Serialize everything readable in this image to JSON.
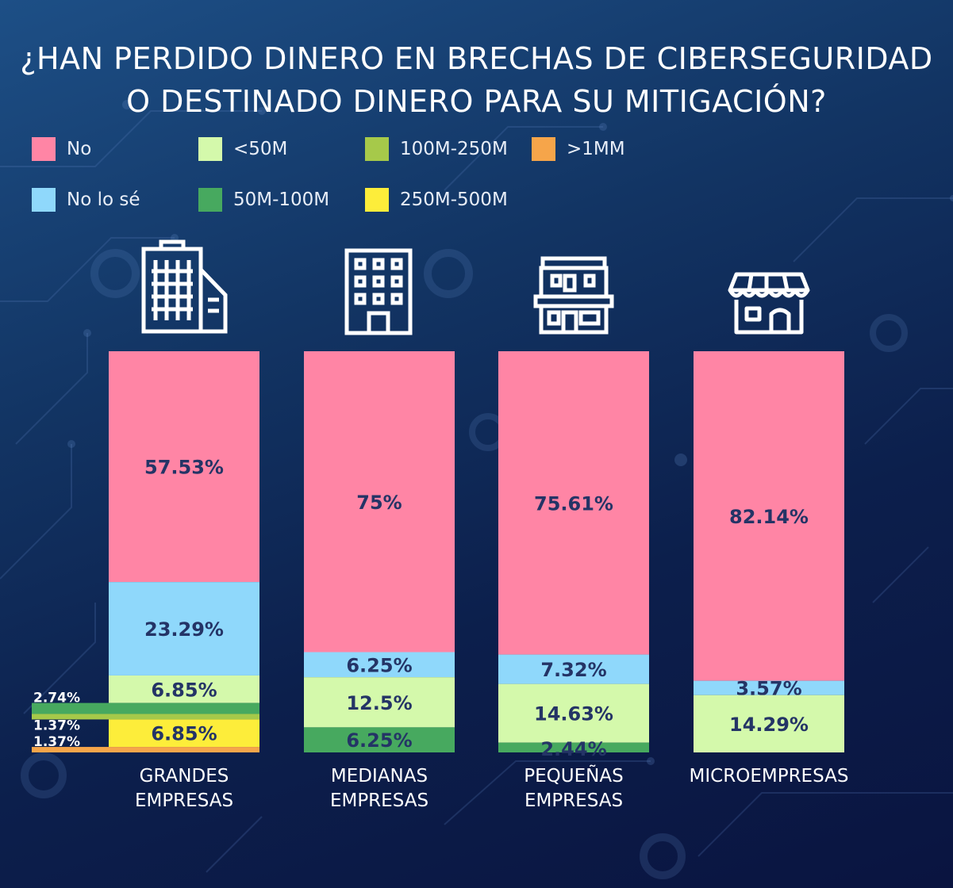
{
  "title": {
    "line1": "¿HAN PERDIDO DINERO EN BRECHAS DE  CIBERSEGURIDAD",
    "line2": "O DESTINADO DINERO PARA SU MITIGACIÓN?"
  },
  "colors": {
    "No": "#ff85a5",
    "No lo sé": "#8fd8fb",
    "<50M": "#d4f9ab",
    "50M-100M": "#47a95f",
    "100M-250M": "#a6c94a",
    "250M-500M": "#fded3a",
    ">1MM": "#f6a54a",
    "value_text": "#243466",
    "outside_text": "#ffffff",
    "category_text": "#ffffff"
  },
  "icons": [
    "office-tower-icon",
    "building-icon",
    "shop-building-icon",
    "storefront-icon"
  ],
  "chart_data": {
    "type": "bar",
    "stacked": true,
    "title": "¿HAN PERDIDO DINERO EN BRECHAS DE  CIBERSEGURIDAD O DESTINADO DINERO PARA SU MITIGACIÓN?",
    "categories": [
      [
        "GRANDES",
        "EMPRESAS"
      ],
      [
        "MEDIANAS",
        "EMPRESAS"
      ],
      [
        "PEQUEÑAS",
        "EMPRESAS"
      ],
      [
        "MICROEMPRESAS"
      ]
    ],
    "legend": [
      "No",
      "<50M",
      "100M-250M",
      ">1MM",
      "No lo sé",
      "50M-100M",
      "250M-500M"
    ],
    "legend_position": "top",
    "ylim": [
      0,
      100
    ],
    "series": [
      {
        "name": "No",
        "values": [
          57.53,
          75,
          75.61,
          82.14
        ],
        "labels": [
          "57.53%",
          "75%",
          "75.61%",
          "82.14%"
        ]
      },
      {
        "name": "No lo sé",
        "values": [
          23.29,
          6.25,
          7.32,
          3.57
        ],
        "labels": [
          "23.29%",
          "6.25%",
          "7.32%",
          "3.57%"
        ]
      },
      {
        "name": "<50M",
        "values": [
          6.85,
          12.5,
          14.63,
          14.29
        ],
        "labels": [
          "6.85%",
          "12.5%",
          "14.63%",
          "14.29%"
        ]
      },
      {
        "name": "50M-100M",
        "values": [
          2.74,
          6.25,
          2.44,
          0
        ],
        "labels": [
          "2.74%",
          "6.25%",
          "2.44%",
          ""
        ]
      },
      {
        "name": "100M-250M",
        "values": [
          1.37,
          0,
          0,
          0
        ],
        "labels": [
          "1.37%",
          "",
          "",
          ""
        ]
      },
      {
        "name": "250M-500M",
        "values": [
          6.85,
          0,
          0,
          0
        ],
        "labels": [
          "6.85%",
          "",
          "",
          ""
        ]
      },
      {
        "name": ">1MM",
        "values": [
          1.37,
          0,
          0,
          0
        ],
        "labels": [
          "1.37%",
          "",
          "",
          ""
        ]
      }
    ]
  }
}
